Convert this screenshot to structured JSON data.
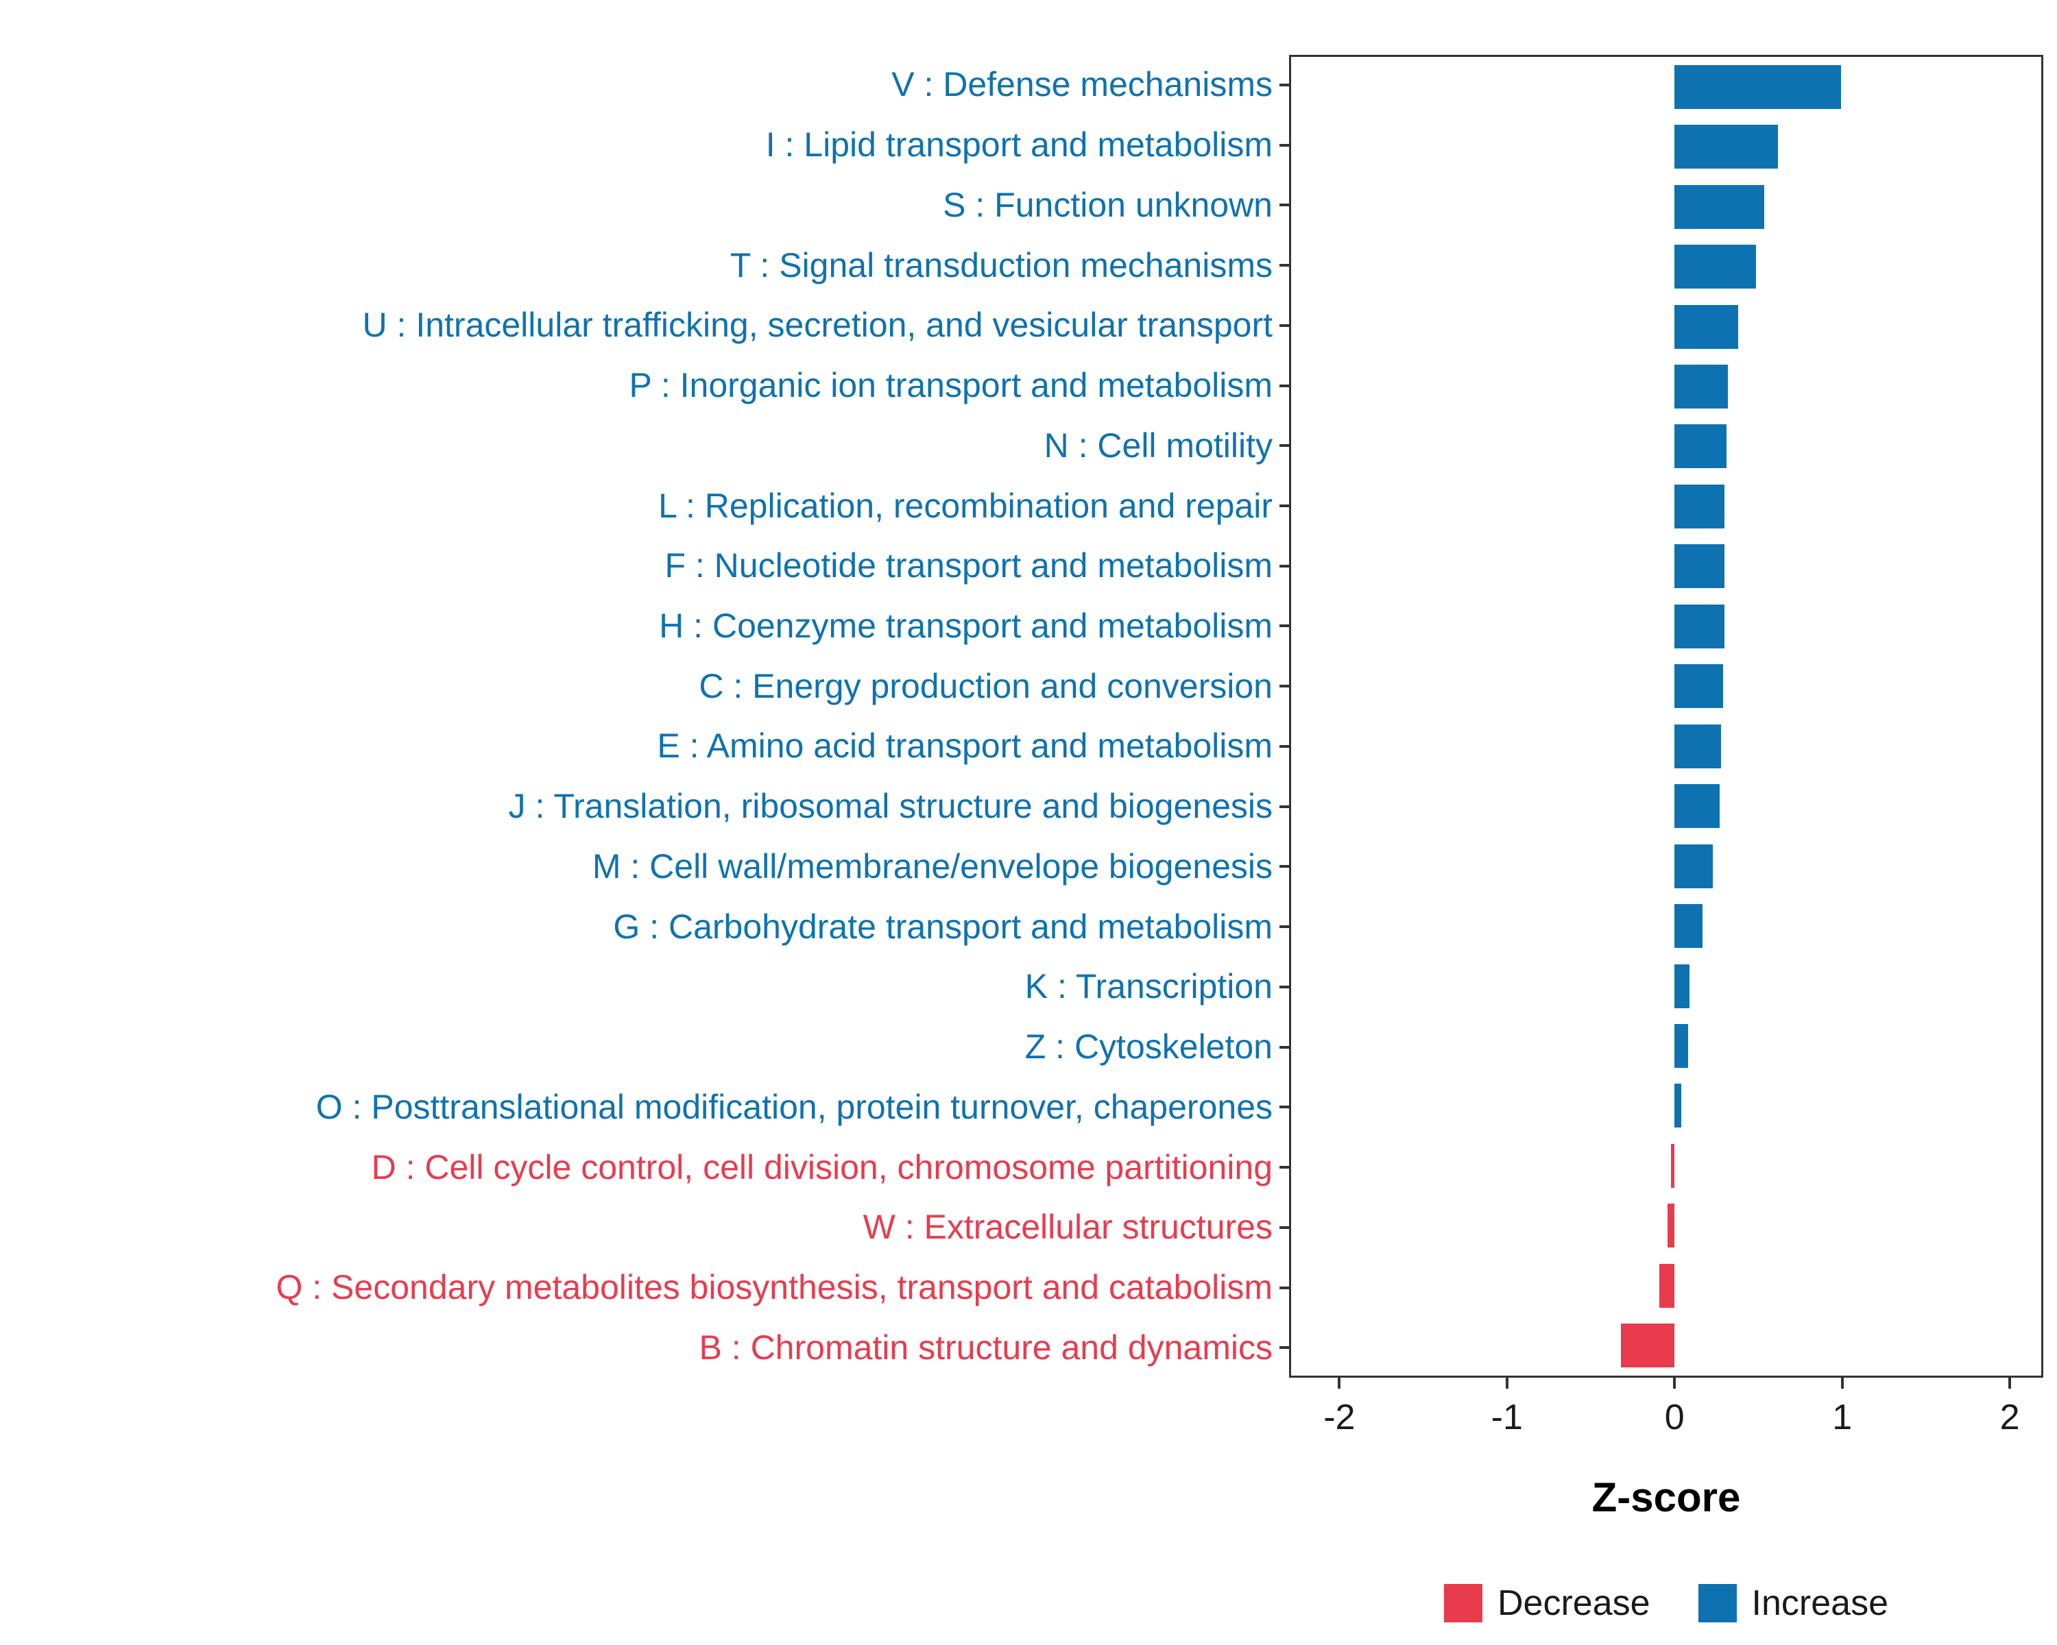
{
  "chart_data": {
    "type": "bar",
    "orientation": "horizontal",
    "title": "",
    "xlabel": "Z-score",
    "xlim": [
      -2.3,
      2.2
    ],
    "xticks": [
      -2,
      -1,
      0,
      1,
      2
    ],
    "grid": false,
    "categories": [
      "V : Defense mechanisms",
      "I : Lipid transport and metabolism",
      "S : Function unknown",
      "T : Signal transduction mechanisms",
      "U : Intracellular trafficking, secretion, and vesicular transport",
      "P : Inorganic ion transport and metabolism",
      "N : Cell motility",
      "L : Replication, recombination and repair",
      "F : Nucleotide transport and metabolism",
      "H : Coenzyme transport and metabolism",
      "C : Energy production and conversion",
      "E : Amino acid transport and metabolism",
      "J : Translation, ribosomal structure and biogenesis",
      "M : Cell wall/membrane/envelope biogenesis",
      "G : Carbohydrate transport and metabolism",
      "K : Transcription",
      "Z : Cytoskeleton",
      "O : Posttranslational modification, protein turnover, chaperones",
      "D : Cell cycle control, cell division, chromosome partitioning",
      "W : Extracellular structures",
      "Q : Secondary metabolites biosynthesis, transport and catabolism",
      "B : Chromatin structure and dynamics"
    ],
    "values": [
      1.0,
      0.62,
      0.54,
      0.49,
      0.38,
      0.32,
      0.31,
      0.3,
      0.3,
      0.3,
      0.29,
      0.28,
      0.27,
      0.23,
      0.17,
      0.09,
      0.08,
      0.04,
      -0.02,
      -0.04,
      -0.09,
      -0.32
    ],
    "groups": [
      "Increase",
      "Increase",
      "Increase",
      "Increase",
      "Increase",
      "Increase",
      "Increase",
      "Increase",
      "Increase",
      "Increase",
      "Increase",
      "Increase",
      "Increase",
      "Increase",
      "Increase",
      "Increase",
      "Increase",
      "Increase",
      "Decrease",
      "Decrease",
      "Decrease",
      "Decrease"
    ],
    "colors": {
      "Increase": "#0e72b1",
      "Decrease": "#e93b4e"
    },
    "legend": {
      "position": "bottom",
      "entries": [
        {
          "label": "Decrease",
          "color": "#e93b4e"
        },
        {
          "label": "Increase",
          "color": "#0e72b1"
        }
      ]
    }
  },
  "axis": {
    "xlabel": "Z-score"
  }
}
